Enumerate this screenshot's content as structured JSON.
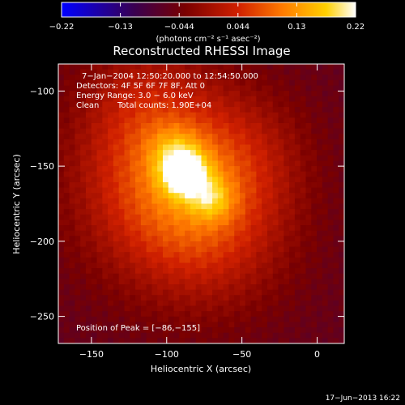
{
  "colors": {
    "background": "#000000",
    "colormap": [
      "#0000ff",
      "#3a004f",
      "#7a0000",
      "#d02000",
      "#ff7a00",
      "#ffd000",
      "#ffffff"
    ]
  },
  "chart_data": {
    "type": "heatmap",
    "title": "Reconstructed RHESSI Image",
    "xlabel": "Heliocentric X (arcsec)",
    "ylabel": "Heliocentric Y (arcsec)",
    "xlim": [
      -172,
      18
    ],
    "ylim": [
      -268,
      -82
    ],
    "x_ticks": [
      -150,
      -100,
      -50,
      0
    ],
    "y_ticks": [
      -100,
      -150,
      -200,
      -250
    ],
    "colorbar": {
      "min": -0.22,
      "max": 0.22,
      "ticks": [
        {
          "value": -0.22,
          "label": "−0.22"
        },
        {
          "value": -0.132,
          "label": "−0.13"
        },
        {
          "value": -0.044,
          "label": "−0.044"
        },
        {
          "value": 0.044,
          "label": "0.044"
        },
        {
          "value": 0.132,
          "label": "0.13"
        },
        {
          "value": 0.22,
          "label": "0.22"
        }
      ],
      "unit_label": "(photons cm⁻² s⁻¹ asec⁻²)"
    },
    "annotations": {
      "time": "7−Jan−2004 12:50:20.000 to 12:54:50.000",
      "detectors": "Detectors: 4F 5F 6F 7F 8F, Att 0",
      "energy": "Energy Range: 3.0 − 6.0 keV",
      "clean_label": "Clean",
      "counts": "Total counts: 1.90E+04",
      "peak": "Position of Peak = [−86,−155]"
    },
    "footer_date": "17−Jun−2013 16:22",
    "peak_position": [
      -86,
      -155
    ],
    "peak_value": 0.22,
    "background_level": -0.06,
    "source_components": [
      {
        "x": -88,
        "y": -155,
        "amp": 0.16,
        "sigma": 11
      },
      {
        "x": -70,
        "y": -172,
        "amp": 0.08,
        "sigma": 10
      },
      {
        "x": -95,
        "y": -140,
        "amp": 0.06,
        "sigma": 12
      },
      {
        "x": -100,
        "y": -160,
        "amp": 0.13,
        "sigma": 42
      },
      {
        "x": -70,
        "y": -195,
        "amp": 0.07,
        "sigma": 38
      },
      {
        "x": -115,
        "y": -105,
        "amp": 0.05,
        "sigma": 30
      },
      {
        "x": -45,
        "y": -140,
        "amp": 0.04,
        "sigma": 30
      }
    ]
  }
}
